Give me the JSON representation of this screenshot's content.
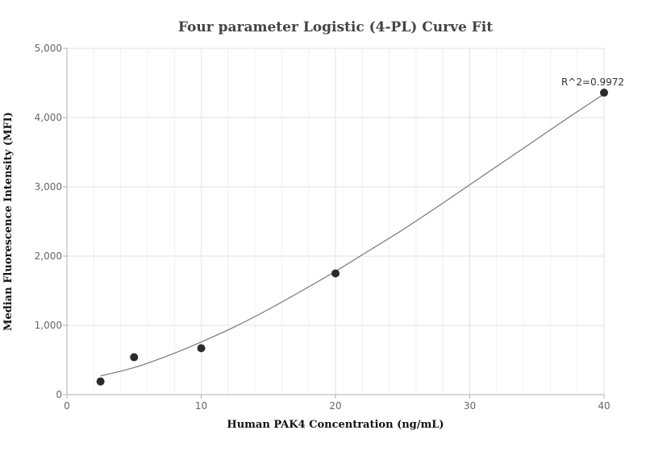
{
  "chart_data": {
    "type": "scatter",
    "title": "Four parameter Logistic (4-PL) Curve Fit",
    "xlabel": "Human PAK4 Concentration (ng/mL)",
    "ylabel": "Median Fluorescence Intensity (MFI)",
    "xlim": [
      0,
      40
    ],
    "ylim": [
      0,
      5000
    ],
    "x_ticks": [
      0,
      10,
      20,
      30,
      40
    ],
    "y_ticks": [
      0,
      1000,
      2000,
      3000,
      4000,
      5000
    ],
    "x_tick_labels": [
      "0",
      "10",
      "20",
      "30",
      "40"
    ],
    "y_tick_labels": [
      "0",
      "1,000",
      "2,000",
      "3,000",
      "4,000",
      "5,000"
    ],
    "grid": true,
    "series": [
      {
        "x": [
          2.5,
          5,
          10,
          20,
          40
        ],
        "y": [
          190,
          540,
          670,
          1750,
          4360
        ],
        "color": "#2b2b2b"
      }
    ],
    "fit_curve": {
      "x": [
        2.5,
        5,
        7.5,
        10,
        12.5,
        15,
        17.5,
        20,
        22.5,
        25,
        27.5,
        30,
        32.5,
        35,
        37.5,
        40
      ],
      "y": [
        270,
        390,
        560,
        760,
        980,
        1230,
        1500,
        1780,
        2080,
        2380,
        2700,
        3030,
        3360,
        3690,
        4020,
        4340
      ],
      "color": "#777777"
    },
    "annotations": [
      {
        "text": "R^2=0.9972",
        "x": 40,
        "y": 4360
      }
    ]
  }
}
